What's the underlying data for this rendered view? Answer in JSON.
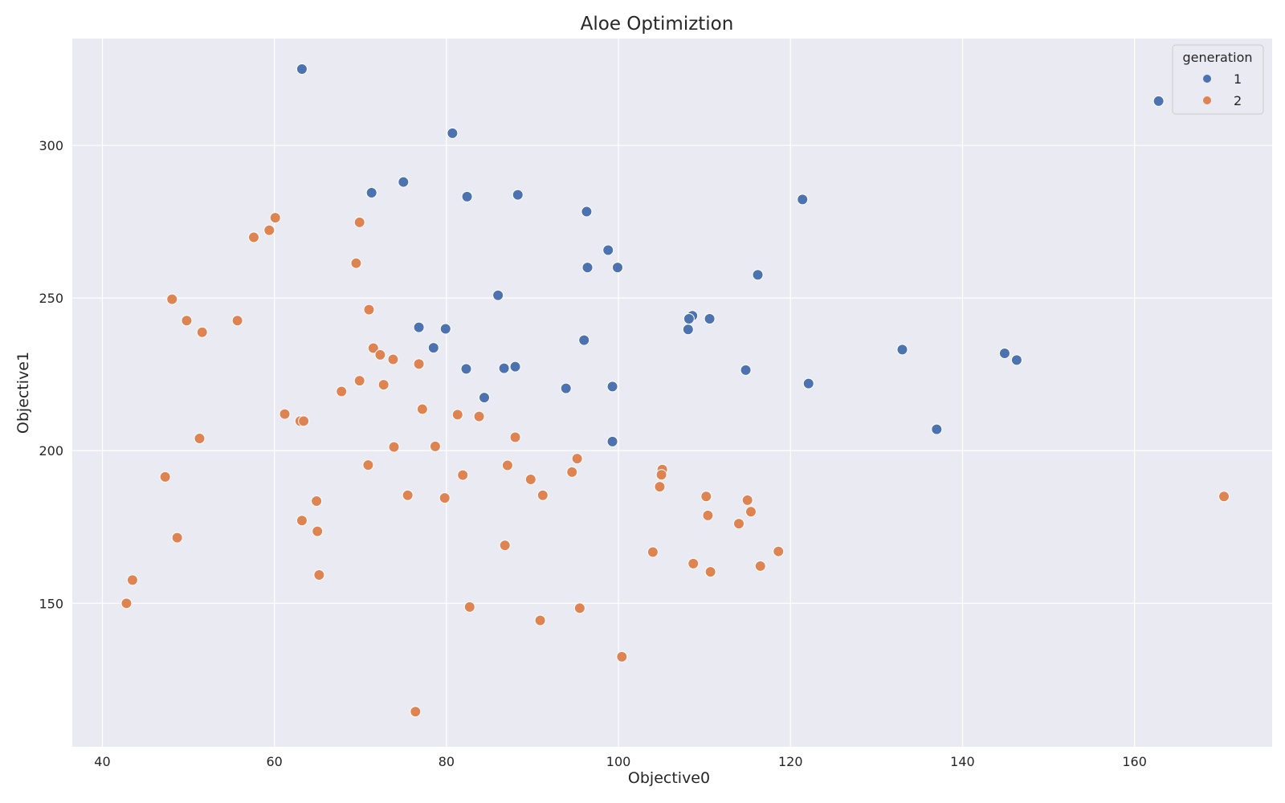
{
  "chart_data": {
    "type": "scatter",
    "title": "Aloe Optimiztion",
    "xlabel": "Objective0",
    "ylabel": "Objective1",
    "xlim": [
      36.5,
      176
    ],
    "ylim": [
      103,
      335
    ],
    "x_ticks": [
      40,
      60,
      80,
      100,
      120,
      140,
      160
    ],
    "y_ticks": [
      150,
      200,
      250,
      300
    ],
    "grid": true,
    "legend": {
      "title": "generation",
      "placement": "top-right",
      "entries": [
        "1",
        "2"
      ]
    },
    "colors": {
      "background": "#eaeaf2",
      "grid": "#ffffff",
      "series_1": "#4c72b0",
      "series_2": "#dd8452"
    },
    "series": [
      {
        "name": "1",
        "color": "#4c72b0",
        "points": [
          [
            63.2,
            325
          ],
          [
            162.8,
            314.5
          ],
          [
            80.7,
            304
          ],
          [
            75.0,
            288
          ],
          [
            71.3,
            284.5
          ],
          [
            88.3,
            283.8
          ],
          [
            82.4,
            283.2
          ],
          [
            121.4,
            282.3
          ],
          [
            96.3,
            278.3
          ],
          [
            98.8,
            265.7
          ],
          [
            96.4,
            260
          ],
          [
            99.9,
            260
          ],
          [
            116.2,
            257.6
          ],
          [
            86.0,
            250.9
          ],
          [
            108.6,
            244.2
          ],
          [
            108.2,
            243.2
          ],
          [
            110.6,
            243.2
          ],
          [
            76.8,
            240.4
          ],
          [
            79.9,
            239.9
          ],
          [
            108.1,
            239.7
          ],
          [
            96.0,
            236.2
          ],
          [
            78.5,
            233.7
          ],
          [
            133.0,
            233.1
          ],
          [
            144.9,
            231.9
          ],
          [
            146.3,
            229.7
          ],
          [
            88.0,
            227.5
          ],
          [
            86.7,
            227.0
          ],
          [
            82.3,
            226.8
          ],
          [
            114.8,
            226.4
          ],
          [
            122.1,
            222
          ],
          [
            99.3,
            221
          ],
          [
            93.9,
            220.4
          ],
          [
            84.4,
            217.4
          ],
          [
            137.0,
            207
          ],
          [
            99.3,
            203
          ]
        ]
      },
      {
        "name": "2",
        "color": "#dd8452",
        "points": [
          [
            60.1,
            276.3
          ],
          [
            69.9,
            274.8
          ],
          [
            59.4,
            272.2
          ],
          [
            57.6,
            269.9
          ],
          [
            69.5,
            261.4
          ],
          [
            48.1,
            249.6
          ],
          [
            71.0,
            246.2
          ],
          [
            49.8,
            242.6
          ],
          [
            55.7,
            242.6
          ],
          [
            51.6,
            238.8
          ],
          [
            71.5,
            233.6
          ],
          [
            72.3,
            231.4
          ],
          [
            73.8,
            229.9
          ],
          [
            76.8,
            228.4
          ],
          [
            69.9,
            222.9
          ],
          [
            72.7,
            221.6
          ],
          [
            67.8,
            219.4
          ],
          [
            77.2,
            213.6
          ],
          [
            61.2,
            212
          ],
          [
            81.3,
            211.8
          ],
          [
            83.8,
            211.2
          ],
          [
            63.0,
            209.7
          ],
          [
            63.4,
            209.7
          ],
          [
            88.0,
            204.4
          ],
          [
            51.3,
            204
          ],
          [
            73.9,
            201.2
          ],
          [
            78.7,
            201.4
          ],
          [
            95.2,
            197.4
          ],
          [
            70.9,
            195.3
          ],
          [
            87.1,
            195.2
          ],
          [
            105.1,
            193.8
          ],
          [
            105.0,
            192.1
          ],
          [
            94.6,
            193
          ],
          [
            81.9,
            192
          ],
          [
            47.3,
            191.4
          ],
          [
            89.8,
            190.6
          ],
          [
            104.8,
            188.2
          ],
          [
            91.2,
            185.4
          ],
          [
            75.5,
            185.4
          ],
          [
            110.2,
            185
          ],
          [
            170.4,
            185
          ],
          [
            79.8,
            184.5
          ],
          [
            115.0,
            183.8
          ],
          [
            64.9,
            183.5
          ],
          [
            115.4,
            180
          ],
          [
            110.4,
            178.8
          ],
          [
            63.2,
            177.1
          ],
          [
            114.0,
            176.1
          ],
          [
            65.0,
            173.6
          ],
          [
            48.7,
            171.5
          ],
          [
            86.8,
            169
          ],
          [
            118.6,
            167
          ],
          [
            104.0,
            166.8
          ],
          [
            108.7,
            163
          ],
          [
            116.5,
            162.2
          ],
          [
            110.7,
            160.3
          ],
          [
            65.2,
            159.3
          ],
          [
            43.5,
            157.6
          ],
          [
            42.8,
            150
          ],
          [
            82.7,
            148.8
          ],
          [
            95.5,
            148.4
          ],
          [
            90.9,
            144.4
          ],
          [
            100.4,
            132.5
          ],
          [
            76.4,
            114.5
          ]
        ]
      }
    ]
  }
}
